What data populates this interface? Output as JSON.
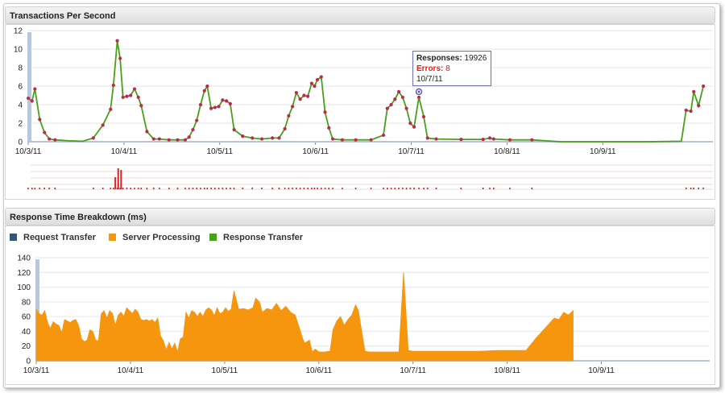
{
  "panels": {
    "tps_title": "Transactions Per Second",
    "rt_title": "Response Time Breakdown (ms)"
  },
  "tooltip": {
    "responses_label": "Responses:",
    "responses_value": "19926",
    "errors_label": "Errors:",
    "errors_value": "8",
    "date": "10/7/11"
  },
  "legend": [
    {
      "label": "Request Transfer",
      "color": "#34557a"
    },
    {
      "label": "Server Processing",
      "color": "#f5960e"
    },
    {
      "label": "Response Transfer",
      "color": "#48a119"
    }
  ],
  "colors": {
    "tps_line": "#48a119",
    "tps_point": "#c0274f",
    "error_bar": "#e02020",
    "server_area": "#f5960e",
    "axis_band": "#b9c7dc"
  },
  "chart_data": [
    {
      "type": "line",
      "title": "Transactions Per Second",
      "xlabel": "",
      "ylabel": "",
      "ylim": [
        0,
        12
      ],
      "yticks": [
        0,
        2,
        4,
        6,
        8,
        10,
        12
      ],
      "xlim": [
        0,
        7.15
      ],
      "x_tick_labels": [
        {
          "x": 0,
          "label": "10/3/11"
        },
        {
          "x": 1,
          "label": "10/4/11"
        },
        {
          "x": 2,
          "label": "10/5/11"
        },
        {
          "x": 3,
          "label": "10/6/11"
        },
        {
          "x": 4,
          "label": "10/7/11"
        },
        {
          "x": 5,
          "label": "10/8/11"
        },
        {
          "x": 6,
          "label": "10/9/11"
        }
      ],
      "grid": true,
      "series": [
        {
          "values": [
            [
              0.0,
              4.7
            ],
            [
              0.04,
              4.4
            ],
            [
              0.07,
              5.7
            ],
            [
              0.12,
              2.4
            ],
            [
              0.17,
              1.0
            ],
            [
              0.22,
              0.3
            ],
            [
              0.28,
              0.2
            ],
            [
              0.42,
              0.1
            ],
            [
              0.57,
              0.05
            ],
            [
              0.68,
              0.4
            ],
            [
              0.78,
              1.8
            ],
            [
              0.86,
              3.5
            ],
            [
              0.89,
              6.1
            ],
            [
              0.93,
              10.9
            ],
            [
              0.96,
              9.0
            ],
            [
              0.99,
              4.8
            ],
            [
              1.03,
              4.9
            ],
            [
              1.07,
              5.0
            ],
            [
              1.11,
              5.7
            ],
            [
              1.15,
              4.8
            ],
            [
              1.18,
              3.9
            ],
            [
              1.24,
              1.1
            ],
            [
              1.31,
              0.3
            ],
            [
              1.37,
              0.3
            ],
            [
              1.47,
              0.2
            ],
            [
              1.56,
              0.2
            ],
            [
              1.64,
              0.2
            ],
            [
              1.68,
              0.5
            ],
            [
              1.72,
              1.3
            ],
            [
              1.76,
              2.3
            ],
            [
              1.8,
              4.0
            ],
            [
              1.84,
              5.5
            ],
            [
              1.87,
              6.0
            ],
            [
              1.91,
              3.6
            ],
            [
              1.95,
              3.7
            ],
            [
              1.99,
              3.8
            ],
            [
              2.03,
              4.5
            ],
            [
              2.07,
              4.4
            ],
            [
              2.11,
              4.1
            ],
            [
              2.15,
              1.3
            ],
            [
              2.24,
              0.6
            ],
            [
              2.34,
              0.4
            ],
            [
              2.44,
              0.3
            ],
            [
              2.55,
              0.4
            ],
            [
              2.62,
              0.4
            ],
            [
              2.68,
              1.4
            ],
            [
              2.72,
              2.8
            ],
            [
              2.76,
              3.8
            ],
            [
              2.8,
              5.3
            ],
            [
              2.84,
              4.6
            ],
            [
              2.88,
              5.0
            ],
            [
              2.92,
              4.9
            ],
            [
              2.96,
              6.3
            ],
            [
              2.99,
              6.0
            ],
            [
              3.02,
              6.7
            ],
            [
              3.06,
              7.0
            ],
            [
              3.1,
              3.2
            ],
            [
              3.14,
              1.5
            ],
            [
              3.18,
              0.3
            ],
            [
              3.28,
              0.2
            ],
            [
              3.42,
              0.2
            ],
            [
              3.58,
              0.2
            ],
            [
              3.71,
              0.7
            ],
            [
              3.75,
              3.6
            ],
            [
              3.79,
              4.0
            ],
            [
              3.83,
              4.6
            ],
            [
              3.87,
              5.4
            ],
            [
              3.91,
              4.8
            ],
            [
              3.95,
              3.6
            ],
            [
              3.99,
              2.0
            ],
            [
              4.03,
              1.6
            ],
            [
              4.08,
              4.8
            ],
            [
              4.13,
              2.7
            ],
            [
              4.17,
              0.4
            ],
            [
              4.26,
              0.3
            ],
            [
              4.52,
              0.25
            ],
            [
              4.75,
              0.25
            ],
            [
              4.82,
              0.4
            ],
            [
              4.86,
              0.3
            ],
            [
              5.03,
              0.2
            ],
            [
              5.26,
              0.2
            ],
            [
              5.56,
              0.0
            ],
            [
              5.86,
              0.0
            ],
            [
              6.15,
              0.0
            ],
            [
              6.47,
              0.0
            ],
            [
              6.82,
              0.05
            ],
            [
              6.87,
              3.4
            ],
            [
              6.92,
              3.3
            ],
            [
              6.95,
              5.4
            ],
            [
              7.0,
              3.9
            ],
            [
              7.05,
              6.0
            ]
          ]
        }
      ],
      "tooltip_point": [
        4.08,
        5.4
      ]
    },
    {
      "type": "area",
      "title": "Response Time Breakdown (ms)",
      "xlabel": "",
      "ylabel": "",
      "ylim": [
        0,
        140
      ],
      "yticks": [
        0,
        20,
        40,
        60,
        80,
        100,
        120,
        140
      ],
      "xlim": [
        0,
        7.15
      ],
      "x_tick_labels": [
        {
          "x": 0,
          "label": "10/3/11"
        },
        {
          "x": 1,
          "label": "10/4/11"
        },
        {
          "x": 2,
          "label": "10/5/11"
        },
        {
          "x": 3,
          "label": "10/6/11"
        },
        {
          "x": 4,
          "label": "10/7/11"
        },
        {
          "x": 5,
          "label": "10/8/11"
        },
        {
          "x": 6,
          "label": "10/9/11"
        }
      ],
      "grid": true,
      "legend_position": "top-left",
      "series": [
        {
          "name": "Server Processing",
          "values": [
            [
              0.0,
              70
            ],
            [
              0.03,
              64
            ],
            [
              0.06,
              62
            ],
            [
              0.09,
              68
            ],
            [
              0.12,
              52
            ],
            [
              0.15,
              44
            ],
            [
              0.18,
              53
            ],
            [
              0.21,
              50
            ],
            [
              0.24,
              48
            ],
            [
              0.27,
              38
            ],
            [
              0.3,
              56
            ],
            [
              0.33,
              54
            ],
            [
              0.36,
              52
            ],
            [
              0.39,
              55
            ],
            [
              0.42,
              56
            ],
            [
              0.45,
              48
            ],
            [
              0.48,
              30
            ],
            [
              0.51,
              26
            ],
            [
              0.54,
              28
            ],
            [
              0.57,
              42
            ],
            [
              0.6,
              40
            ],
            [
              0.63,
              28
            ],
            [
              0.66,
              27
            ],
            [
              0.69,
              64
            ],
            [
              0.72,
              68
            ],
            [
              0.75,
              58
            ],
            [
              0.78,
              68
            ],
            [
              0.81,
              64
            ],
            [
              0.84,
              48
            ],
            [
              0.87,
              62
            ],
            [
              0.9,
              66
            ],
            [
              0.93,
              60
            ],
            [
              0.96,
              72
            ],
            [
              0.99,
              68
            ],
            [
              1.02,
              64
            ],
            [
              1.05,
              70
            ],
            [
              1.08,
              66
            ],
            [
              1.11,
              56
            ],
            [
              1.14,
              55
            ],
            [
              1.17,
              56
            ],
            [
              1.2,
              54
            ],
            [
              1.23,
              56
            ],
            [
              1.26,
              52
            ],
            [
              1.29,
              58
            ],
            [
              1.32,
              34
            ],
            [
              1.35,
              27
            ],
            [
              1.38,
              15
            ],
            [
              1.41,
              25
            ],
            [
              1.44,
              16
            ],
            [
              1.47,
              24
            ],
            [
              1.5,
              12
            ],
            [
              1.53,
              30
            ],
            [
              1.56,
              32
            ],
            [
              1.59,
              66
            ],
            [
              1.62,
              58
            ],
            [
              1.65,
              68
            ],
            [
              1.68,
              66
            ],
            [
              1.71,
              60
            ],
            [
              1.74,
              66
            ],
            [
              1.77,
              60
            ],
            [
              1.8,
              69
            ],
            [
              1.83,
              72
            ],
            [
              1.86,
              69
            ],
            [
              1.89,
              61
            ],
            [
              1.92,
              72
            ],
            [
              1.95,
              64
            ],
            [
              1.98,
              66
            ],
            [
              2.01,
              72
            ],
            [
              2.04,
              67
            ],
            [
              2.07,
              70
            ],
            [
              2.1,
              95
            ],
            [
              2.15,
              70
            ],
            [
              2.2,
              71
            ],
            [
              2.25,
              69
            ],
            [
              2.3,
              72
            ],
            [
              2.33,
              85
            ],
            [
              2.37,
              80
            ],
            [
              2.4,
              66
            ],
            [
              2.45,
              71
            ],
            [
              2.5,
              69
            ],
            [
              2.55,
              78
            ],
            [
              2.6,
              68
            ],
            [
              2.65,
              74
            ],
            [
              2.7,
              66
            ],
            [
              2.75,
              62
            ],
            [
              2.79,
              46
            ],
            [
              2.83,
              30
            ],
            [
              2.85,
              24
            ],
            [
              2.9,
              28
            ],
            [
              2.93,
              12
            ],
            [
              2.96,
              16
            ],
            [
              3.0,
              12
            ],
            [
              3.06,
              12
            ],
            [
              3.12,
              13
            ],
            [
              3.15,
              42
            ],
            [
              3.19,
              54
            ],
            [
              3.23,
              60
            ],
            [
              3.27,
              48
            ],
            [
              3.31,
              56
            ],
            [
              3.35,
              62
            ],
            [
              3.39,
              76
            ],
            [
              3.42,
              68
            ],
            [
              3.46,
              36
            ],
            [
              3.49,
              13
            ],
            [
              3.53,
              12
            ],
            [
              3.6,
              12
            ],
            [
              3.72,
              12
            ],
            [
              3.8,
              12
            ],
            [
              3.85,
              12
            ],
            [
              3.9,
              120
            ],
            [
              3.95,
              14
            ],
            [
              4.0,
              13
            ],
            [
              4.1,
              13
            ],
            [
              4.3,
              13
            ],
            [
              4.5,
              13
            ],
            [
              4.7,
              13
            ],
            [
              4.9,
              14
            ],
            [
              5.1,
              14
            ],
            [
              5.2,
              14
            ],
            [
              5.3,
              30
            ],
            [
              5.4,
              44
            ],
            [
              5.5,
              58
            ],
            [
              5.55,
              56
            ],
            [
              5.6,
              66
            ],
            [
              5.65,
              62
            ],
            [
              5.7,
              68
            ]
          ]
        }
      ]
    }
  ]
}
